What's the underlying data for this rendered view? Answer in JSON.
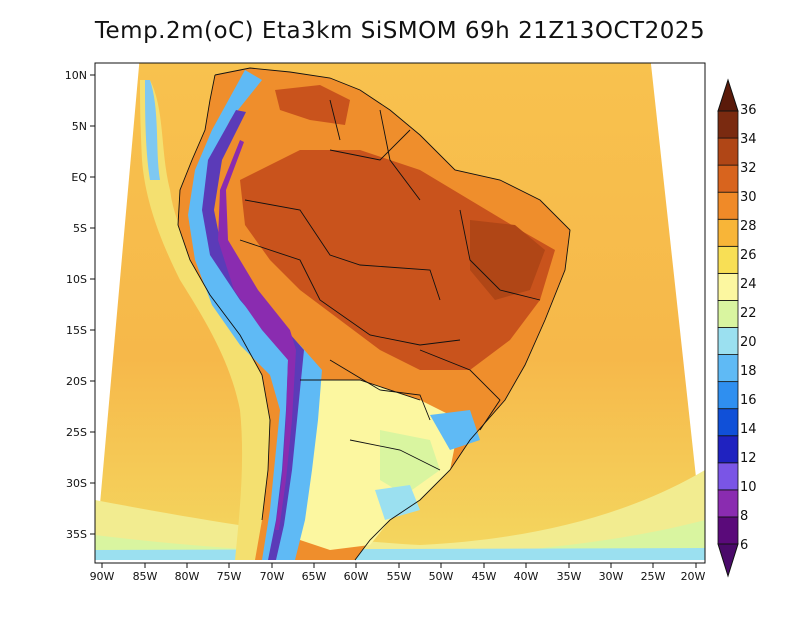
{
  "title": "Temp.2m(oC) Eta3km SiSMOM 69h 21Z13OCT2025",
  "lat_labels": [
    "10N",
    "5N",
    "EQ",
    "5S",
    "10S",
    "15S",
    "20S",
    "25S",
    "30S",
    "35S"
  ],
  "lon_labels": [
    "90W",
    "85W",
    "80W",
    "75W",
    "70W",
    "65W",
    "60W",
    "55W",
    "50W",
    "45W",
    "40W",
    "35W",
    "30W",
    "25W",
    "20W"
  ],
  "colorbar": {
    "labels": [
      "6",
      "8",
      "10",
      "12",
      "14",
      "16",
      "18",
      "20",
      "22",
      "24",
      "26",
      "28",
      "30",
      "32",
      "34",
      "36"
    ],
    "colors": [
      "#5a0a7a",
      "#8a2cb0",
      "#7a55e6",
      "#1f22c0",
      "#1050d8",
      "#2f8ff0",
      "#5fbaf5",
      "#9be0f0",
      "#d9f5a0",
      "#fcf7a0",
      "#f8df55",
      "#f8b538",
      "#f08a28",
      "#d8641e",
      "#b04616",
      "#7a2a10"
    ]
  },
  "colors": {
    "ocean_warm": "#f6bf4e",
    "land_hot": "#c9531c",
    "andes_cold": "#5b3bb8"
  }
}
